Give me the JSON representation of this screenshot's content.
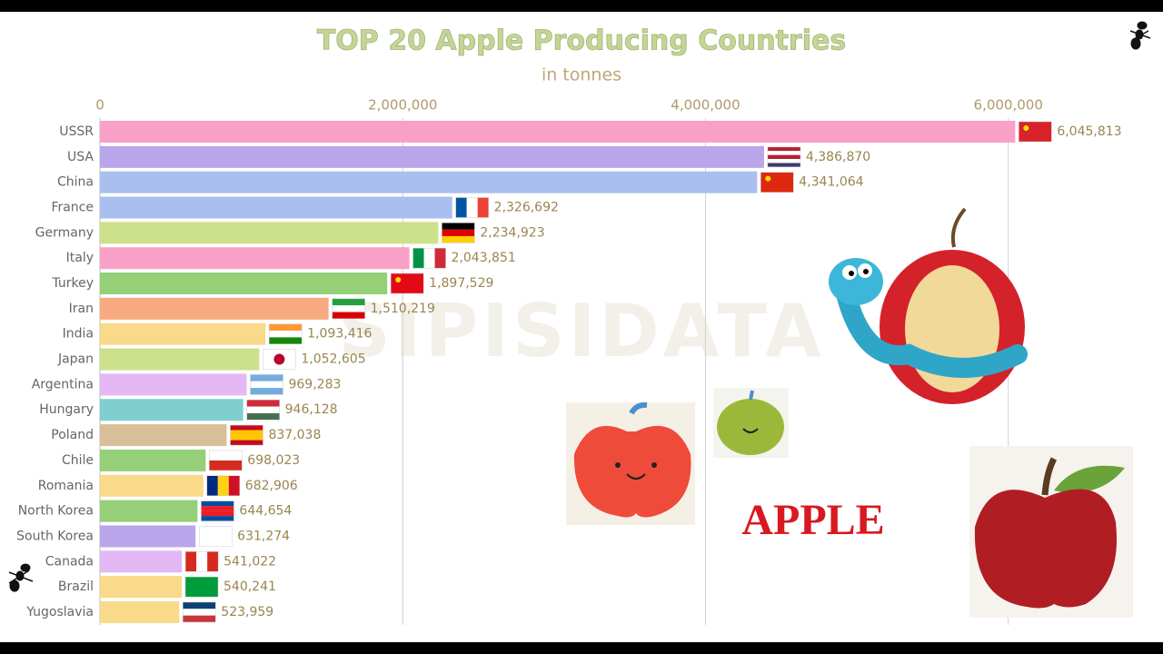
{
  "chart_data": {
    "type": "bar",
    "orientation": "horizontal",
    "title": "TOP 20 Apple Producing Countries",
    "subtitle": "in tonnes",
    "categories": [
      "USSR",
      "USA",
      "China",
      "France",
      "Germany",
      "Italy",
      "Turkey",
      "Iran",
      "India",
      "Japan",
      "Argentina",
      "Hungary",
      "Poland",
      "Chile",
      "Romania",
      "North Korea",
      "South Korea",
      "Canada",
      "Brazil",
      "Yugoslavia"
    ],
    "values": [
      6045813,
      4386870,
      4341064,
      2326692,
      2234923,
      2043851,
      1897529,
      1510219,
      1093416,
      1052605,
      969283,
      946128,
      837038,
      698023,
      682906,
      644654,
      631274,
      541022,
      540241,
      523959
    ],
    "value_labels": [
      "6,045,813",
      "4,386,870",
      "4,341,064",
      "2,326,692",
      "2,234,923",
      "2,043,851",
      "1,897,529",
      "1,510,219",
      "1,093,416",
      "1,052,605",
      "969,283",
      "946,128",
      "837,038",
      "698,023",
      "682,906",
      "644,654",
      "631,274",
      "541,022",
      "540,241",
      "523,959"
    ],
    "colors": [
      "#f9a0c8",
      "#b9a6ea",
      "#a9bff0",
      "#a9bff0",
      "#cde08a",
      "#f9a0c8",
      "#95cf78",
      "#f7a97f",
      "#f9d98a",
      "#cde08a",
      "#e3b8f5",
      "#7fcfd0",
      "#d8bf9a",
      "#95cf78",
      "#f9d98a",
      "#95cf78",
      "#b9a6ea",
      "#e3b8f5",
      "#f9d98a",
      "#f9d98a"
    ],
    "xlim": [
      0,
      6800000
    ],
    "xticks": [
      0,
      {
        "value": 2000000,
        "label": "2,000,000"
      },
      {
        "value": 4000000,
        "label": "4,000,000"
      },
      {
        "value": 6000000,
        "label": "6,000,000"
      }
    ],
    "grid": true,
    "annotations": [
      "APPLE",
      "SIPISIDATA"
    ]
  }
}
